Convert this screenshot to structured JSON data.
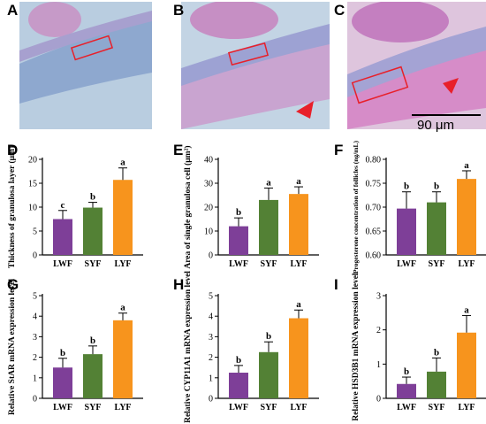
{
  "panel_labels": [
    "A",
    "B",
    "C",
    "D",
    "E",
    "F",
    "G",
    "H",
    "I"
  ],
  "scale_bar_label": "90 μm",
  "colors": {
    "LWF": "#7e3f98",
    "SYF": "#538135",
    "LYF": "#f7941d",
    "micro_blue": "#9fb7d1",
    "micro_pink": "#d88fc0",
    "arrow": "#e8202a",
    "box": "#e8202a"
  },
  "chart_data": [
    {
      "panel": "D",
      "type": "bar",
      "categories": [
        "LWF",
        "SYF",
        "LYF"
      ],
      "values": [
        7.5,
        9.9,
        15.7
      ],
      "errors": [
        1.8,
        1.1,
        2.5
      ],
      "letters": [
        "c",
        "b",
        "a"
      ],
      "ylabel": "Thickness of granulosa layer (μm)",
      "ylim": [
        0,
        20
      ],
      "ticks": [
        0,
        5,
        10,
        15,
        20
      ]
    },
    {
      "panel": "E",
      "type": "bar",
      "categories": [
        "LWF",
        "SYF",
        "LYF"
      ],
      "values": [
        12,
        23,
        25.5
      ],
      "errors": [
        3.5,
        5,
        3
      ],
      "letters": [
        "b",
        "a",
        "a"
      ],
      "ylabel": "Area of single granulosa cell (μm²)",
      "ylim": [
        0,
        40
      ],
      "ticks": [
        0,
        10,
        20,
        30,
        40
      ]
    },
    {
      "panel": "F",
      "type": "bar",
      "categories": [
        "LWF",
        "SYF",
        "LYF"
      ],
      "values": [
        0.697,
        0.71,
        0.759
      ],
      "errors": [
        0.035,
        0.022,
        0.017
      ],
      "letters": [
        "b",
        "b",
        "a"
      ],
      "ylabel": "Progesterone concentration of follicles (ng/mL)",
      "ylim": [
        0.6,
        0.8
      ],
      "ticks": [
        "0.60",
        "0.65",
        "0.70",
        "0.75",
        "0.80"
      ]
    },
    {
      "panel": "G",
      "type": "bar",
      "categories": [
        "LWF",
        "SYF",
        "LYF"
      ],
      "values": [
        1.5,
        2.15,
        3.8
      ],
      "errors": [
        0.45,
        0.4,
        0.35
      ],
      "letters": [
        "b",
        "b",
        "a"
      ],
      "ylabel": "Relative StAR mRNA expression level",
      "ylim": [
        0,
        5
      ],
      "ticks": [
        0,
        1,
        2,
        3,
        4,
        5
      ]
    },
    {
      "panel": "H",
      "type": "bar",
      "categories": [
        "LWF",
        "SYF",
        "LYF"
      ],
      "values": [
        1.25,
        2.25,
        3.9
      ],
      "errors": [
        0.35,
        0.5,
        0.4
      ],
      "letters": [
        "b",
        "b",
        "a"
      ],
      "ylabel": "Relative CYP11A1 mRNA expression level",
      "ylim": [
        0,
        5
      ],
      "ticks": [
        0,
        1,
        2,
        3,
        4,
        5
      ]
    },
    {
      "panel": "I",
      "type": "bar",
      "categories": [
        "LWF",
        "SYF",
        "LYF"
      ],
      "values": [
        0.42,
        0.78,
        1.92
      ],
      "errors": [
        0.2,
        0.4,
        0.5
      ],
      "letters": [
        "b",
        "b",
        "a"
      ],
      "ylabel": "Relative HSD3B1 mRNA expression level",
      "ylim": [
        0,
        3
      ],
      "ticks": [
        0,
        1,
        2,
        3
      ]
    }
  ]
}
